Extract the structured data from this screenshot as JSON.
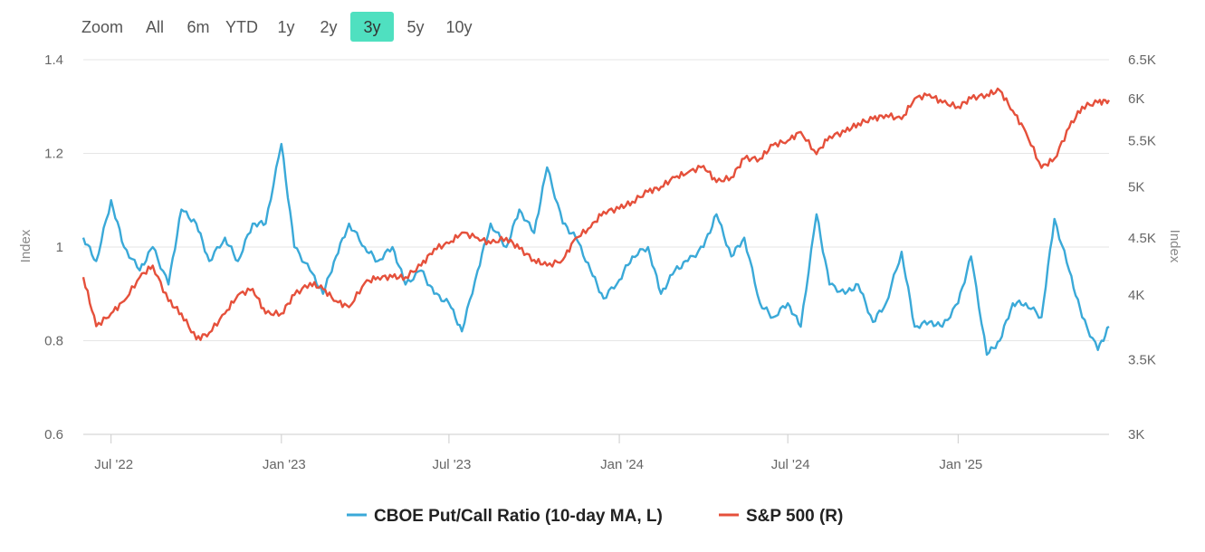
{
  "zoom": {
    "label": "Zoom",
    "buttons": [
      "All",
      "6m",
      "YTD",
      "1y",
      "2y",
      "3y",
      "5y",
      "10y"
    ],
    "active": "3y",
    "active_color": "#4fe0c0"
  },
  "chart_data": {
    "type": "line",
    "title": "",
    "x_tick_labels": [
      "Jul '22",
      "Jan '23",
      "Jul '23",
      "Jan '24",
      "Jul '24",
      "Jan '25"
    ],
    "x_range": [
      "2022-06-01",
      "2025-06-13"
    ],
    "y_left": {
      "title": "Index",
      "range": [
        0.6,
        1.4
      ],
      "ticks": [
        0.6,
        0.8,
        1,
        1.2,
        1.4
      ],
      "tick_labels": [
        "0.6",
        "0.8",
        "1",
        "1.2",
        "1.4"
      ]
    },
    "y_right": {
      "title": "Index",
      "scale": "log",
      "range": [
        3000,
        6500
      ],
      "ticks": [
        3000,
        3500,
        4000,
        4500,
        5000,
        5500,
        6000,
        6500
      ],
      "tick_labels": [
        "3K",
        "3.5K",
        "4K",
        "4.5K",
        "5K",
        "5.5K",
        "6K",
        "6.5K"
      ]
    },
    "series": [
      {
        "name": "CBOE Put/Call Ratio (10-day MA, L)",
        "axis": "left",
        "color": "#3aa9d8",
        "x": [
          "2022-06-01",
          "2022-06-15",
          "2022-07-01",
          "2022-07-15",
          "2022-08-01",
          "2022-08-15",
          "2022-09-01",
          "2022-09-15",
          "2022-10-01",
          "2022-10-15",
          "2022-11-01",
          "2022-11-15",
          "2022-12-01",
          "2022-12-15",
          "2023-01-01",
          "2023-01-15",
          "2023-02-01",
          "2023-02-15",
          "2023-03-01",
          "2023-03-15",
          "2023-04-01",
          "2023-04-15",
          "2023-05-01",
          "2023-05-15",
          "2023-06-01",
          "2023-06-15",
          "2023-07-01",
          "2023-07-15",
          "2023-08-01",
          "2023-08-15",
          "2023-09-01",
          "2023-09-15",
          "2023-10-01",
          "2023-10-15",
          "2023-11-01",
          "2023-11-15",
          "2023-12-01",
          "2023-12-15",
          "2024-01-01",
          "2024-01-15",
          "2024-02-01",
          "2024-02-15",
          "2024-03-01",
          "2024-03-15",
          "2024-04-01",
          "2024-04-15",
          "2024-05-01",
          "2024-05-15",
          "2024-06-01",
          "2024-06-15",
          "2024-07-01",
          "2024-07-15",
          "2024-08-01",
          "2024-08-15",
          "2024-09-01",
          "2024-09-15",
          "2024-10-01",
          "2024-10-15",
          "2024-11-01",
          "2024-11-15",
          "2024-12-01",
          "2024-12-15",
          "2025-01-01",
          "2025-01-15",
          "2025-02-01",
          "2025-02-15",
          "2025-03-01",
          "2025-03-15",
          "2025-04-01",
          "2025-04-15",
          "2025-05-01",
          "2025-05-15",
          "2025-06-01",
          "2025-06-13"
        ],
        "values": [
          1.02,
          0.97,
          1.1,
          1.0,
          0.95,
          1.0,
          0.92,
          1.08,
          1.05,
          0.97,
          1.02,
          0.97,
          1.05,
          1.05,
          1.22,
          1.0,
          0.95,
          0.9,
          0.98,
          1.05,
          1.0,
          0.97,
          1.0,
          0.92,
          0.95,
          0.9,
          0.88,
          0.82,
          0.95,
          1.05,
          1.0,
          1.08,
          1.03,
          1.17,
          1.05,
          1.02,
          0.95,
          0.89,
          0.93,
          0.98,
          1.0,
          0.9,
          0.95,
          0.97,
          1.0,
          1.07,
          0.98,
          1.02,
          0.88,
          0.85,
          0.88,
          0.83,
          1.07,
          0.92,
          0.9,
          0.92,
          0.84,
          0.88,
          0.99,
          0.83,
          0.84,
          0.83,
          0.88,
          0.98,
          0.77,
          0.8,
          0.88,
          0.88,
          0.85,
          1.06,
          0.95,
          0.85,
          0.78,
          0.83
        ]
      },
      {
        "name": "S&P 500 (R)",
        "axis": "right",
        "color": "#e5503b",
        "x": [
          "2022-06-01",
          "2022-06-15",
          "2022-07-01",
          "2022-07-15",
          "2022-08-01",
          "2022-08-15",
          "2022-09-01",
          "2022-09-15",
          "2022-10-01",
          "2022-10-15",
          "2022-11-01",
          "2022-11-15",
          "2022-12-01",
          "2022-12-15",
          "2023-01-01",
          "2023-01-15",
          "2023-02-01",
          "2023-02-15",
          "2023-03-01",
          "2023-03-15",
          "2023-04-01",
          "2023-04-15",
          "2023-05-01",
          "2023-05-15",
          "2023-06-01",
          "2023-06-15",
          "2023-07-01",
          "2023-07-15",
          "2023-08-01",
          "2023-08-15",
          "2023-09-01",
          "2023-09-15",
          "2023-10-01",
          "2023-10-15",
          "2023-11-01",
          "2023-11-15",
          "2023-12-01",
          "2023-12-15",
          "2024-01-01",
          "2024-01-15",
          "2024-02-01",
          "2024-02-15",
          "2024-03-01",
          "2024-03-15",
          "2024-04-01",
          "2024-04-15",
          "2024-05-01",
          "2024-05-15",
          "2024-06-01",
          "2024-06-15",
          "2024-07-01",
          "2024-07-15",
          "2024-08-01",
          "2024-08-15",
          "2024-09-01",
          "2024-09-15",
          "2024-10-01",
          "2024-10-15",
          "2024-11-01",
          "2024-11-15",
          "2024-12-01",
          "2024-12-15",
          "2025-01-01",
          "2025-01-15",
          "2025-02-01",
          "2025-02-15",
          "2025-03-01",
          "2025-03-15",
          "2025-04-01",
          "2025-04-15",
          "2025-05-01",
          "2025-05-15",
          "2025-06-01",
          "2025-06-13"
        ],
        "values": [
          4150,
          3750,
          3850,
          3950,
          4150,
          4250,
          3950,
          3850,
          3650,
          3700,
          3850,
          4000,
          4050,
          3850,
          3850,
          4000,
          4100,
          4050,
          3950,
          3900,
          4100,
          4150,
          4150,
          4150,
          4250,
          4400,
          4450,
          4550,
          4500,
          4450,
          4500,
          4400,
          4300,
          4250,
          4300,
          4500,
          4600,
          4750,
          4780,
          4850,
          4950,
          5000,
          5100,
          5150,
          5220,
          5050,
          5100,
          5300,
          5300,
          5450,
          5500,
          5600,
          5350,
          5550,
          5600,
          5700,
          5750,
          5800,
          5750,
          6000,
          6050,
          5950,
          5900,
          6000,
          6050,
          6100,
          5850,
          5600,
          5200,
          5300,
          5650,
          5900,
          5950,
          5980
        ]
      }
    ],
    "legend": {
      "position": "bottom-center"
    },
    "grid": true
  }
}
